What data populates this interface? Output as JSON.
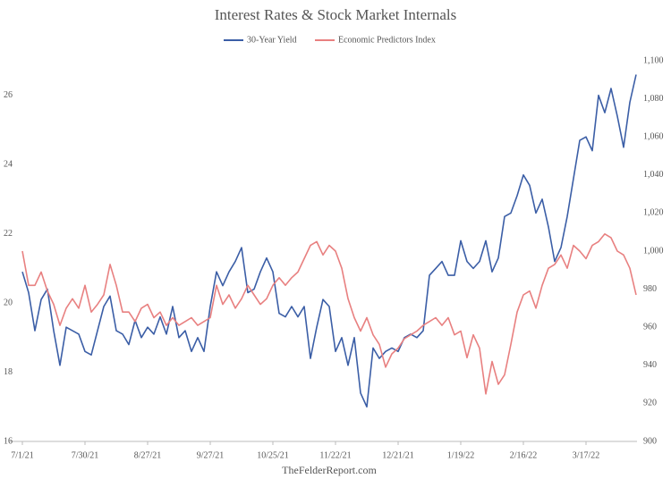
{
  "chart_data": {
    "type": "line",
    "title": "Interest Rates & Stock Market Internals",
    "footer": "TheFelderReport.com",
    "categories": [
      "7/1/21",
      null,
      null,
      null,
      null,
      null,
      null,
      null,
      null,
      null,
      "7/30/21",
      null,
      null,
      null,
      null,
      null,
      null,
      null,
      null,
      null,
      "8/27/21",
      null,
      null,
      null,
      null,
      null,
      null,
      null,
      null,
      null,
      "9/27/21",
      null,
      null,
      null,
      null,
      null,
      null,
      null,
      null,
      null,
      "10/25/21",
      null,
      null,
      null,
      null,
      null,
      null,
      null,
      null,
      null,
      "11/22/21",
      null,
      null,
      null,
      null,
      null,
      null,
      null,
      null,
      null,
      "12/21/21",
      null,
      null,
      null,
      null,
      null,
      null,
      null,
      null,
      null,
      "1/19/22",
      null,
      null,
      null,
      null,
      null,
      null,
      null,
      null,
      null,
      "2/16/22",
      null,
      null,
      null,
      null,
      null,
      null,
      null,
      null,
      null,
      "3/17/22",
      null,
      null,
      null,
      null,
      null,
      null,
      null,
      null
    ],
    "series": [
      {
        "name": "30-Year Yield",
        "color": "#3b5ea6",
        "axis": "y",
        "values": [
          20.9,
          20.3,
          19.2,
          20.1,
          20.4,
          19.2,
          18.2,
          19.3,
          19.2,
          19.1,
          18.6,
          18.5,
          19.2,
          19.9,
          20.2,
          19.2,
          19.1,
          18.8,
          19.5,
          19.0,
          19.3,
          19.1,
          19.6,
          19.1,
          19.9,
          19.0,
          19.2,
          18.6,
          19.0,
          18.6,
          19.9,
          20.9,
          20.5,
          20.9,
          21.2,
          21.6,
          20.3,
          20.4,
          20.9,
          21.3,
          20.9,
          19.7,
          19.6,
          19.9,
          19.6,
          19.9,
          18.4,
          19.3,
          20.1,
          19.9,
          18.6,
          19.0,
          18.2,
          19.0,
          17.4,
          17.0,
          18.7,
          18.4,
          18.6,
          18.7,
          18.6,
          19.0,
          19.1,
          19.0,
          19.2,
          20.8,
          21.0,
          21.2,
          20.8,
          20.8,
          21.8,
          21.2,
          21.0,
          21.2,
          21.8,
          20.9,
          21.3,
          22.5,
          22.6,
          23.1,
          23.7,
          23.4,
          22.6,
          23.0,
          22.2,
          21.2,
          21.6,
          22.5,
          23.6,
          24.7,
          24.8,
          24.4,
          26.0,
          25.5,
          26.2,
          25.4,
          24.5,
          25.8,
          26.6
        ]
      },
      {
        "name": "Economic Predictors Index",
        "color": "#e88080",
        "axis": "y2",
        "values": [
          1000,
          982,
          982,
          989,
          979,
          972,
          961,
          970,
          975,
          970,
          982,
          968,
          972,
          977,
          993,
          982,
          968,
          968,
          963,
          970,
          972,
          965,
          968,
          961,
          965,
          961,
          963,
          965,
          961,
          963,
          965,
          982,
          972,
          977,
          970,
          975,
          982,
          977,
          972,
          975,
          982,
          986,
          982,
          986,
          989,
          996,
          1003,
          1005,
          998,
          1003,
          1000,
          991,
          975,
          965,
          958,
          965,
          956,
          951,
          939,
          946,
          949,
          954,
          956,
          958,
          961,
          963,
          965,
          961,
          965,
          956,
          958,
          944,
          956,
          949,
          925,
          942,
          930,
          935,
          951,
          968,
          977,
          979,
          970,
          982,
          991,
          993,
          998,
          991,
          1003,
          1000,
          996,
          1003,
          1005,
          1009,
          1007,
          1000,
          998,
          991,
          977
        ]
      }
    ],
    "ylim": [
      16,
      27
    ],
    "yticks": [
      16,
      18,
      20,
      22,
      24,
      26
    ],
    "y2lim": [
      900,
      1100
    ],
    "y2ticks": [
      900,
      920,
      940,
      960,
      980,
      {
        "value": 1000,
        "label": "1,000"
      },
      {
        "value": 1020,
        "label": "1,020"
      },
      {
        "value": 1040,
        "label": "1,040"
      },
      {
        "value": 1060,
        "label": "1,060"
      },
      {
        "value": 1080,
        "label": "1,080"
      },
      {
        "value": 1100,
        "label": "1,100"
      }
    ],
    "grid": false,
    "legend": "top"
  }
}
